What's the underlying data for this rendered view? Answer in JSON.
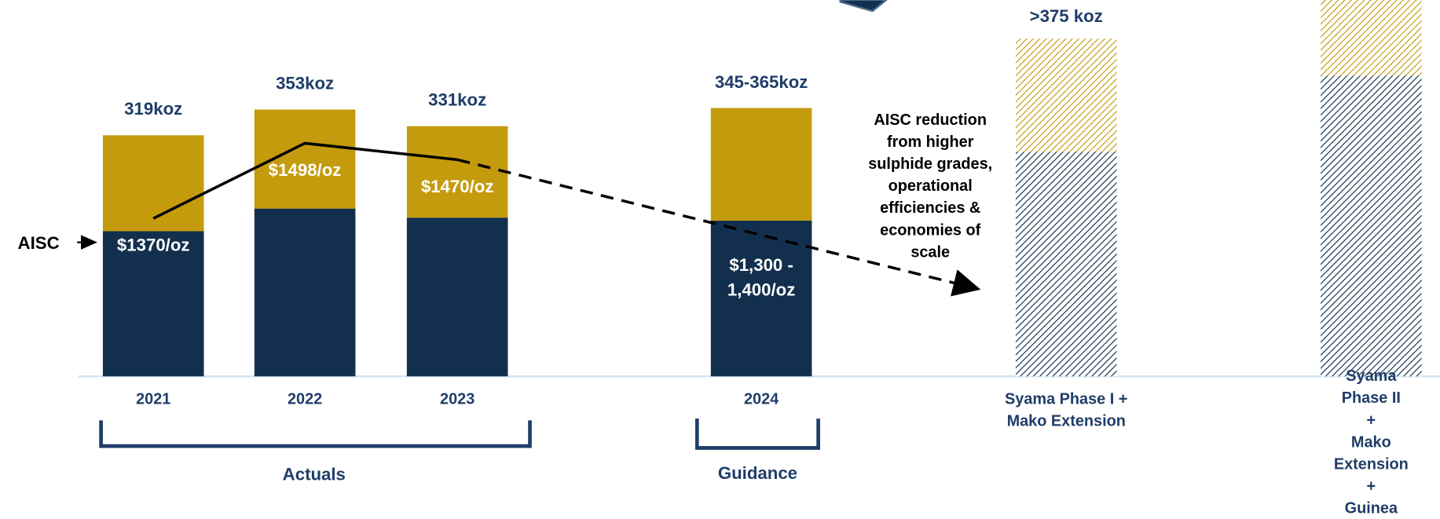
{
  "chart_data": {
    "type": "bar",
    "stacked": true,
    "categories": [
      "2021",
      "2022",
      "2023",
      "2024",
      "Syama Phase I +\nMako Extension",
      "Syama Phase II\n+\nMako Extension\n+\nGuinea"
    ],
    "series": [
      {
        "color": "#12304d",
        "values": [
          192,
          222,
          210,
          206,
          297,
          398
        ]
      },
      {
        "color": "#c59b0e",
        "values": [
          127,
          131,
          121,
          149,
          150,
          100
        ]
      },
      {
        "type": "line",
        "axis": "y2",
        "color": "#000000",
        "values": [
          1370,
          1498,
          1470,
          null,
          null,
          null
        ],
        "value_labels": [
          "$1370/oz",
          "$1498/oz",
          "$1470/oz",
          "$1,300 -\n1,400/oz",
          null,
          null
        ]
      }
    ],
    "hatched": [
      false,
      false,
      false,
      false,
      true,
      true
    ],
    "total_labels": [
      "319koz",
      "353koz",
      "331koz",
      "345-365koz",
      ">375 koz",
      null
    ],
    "ylim": [
      0,
      498
    ],
    "y2lim": [
      1101,
      1742
    ],
    "annotations": {
      "aisc": "AISC",
      "note": "AISC reduction\nfrom higher\nsulphide grades,\noperational\nefficiencies &\neconomies of\nscale",
      "actuals": "Actuals",
      "guidance": "Guidance"
    }
  }
}
